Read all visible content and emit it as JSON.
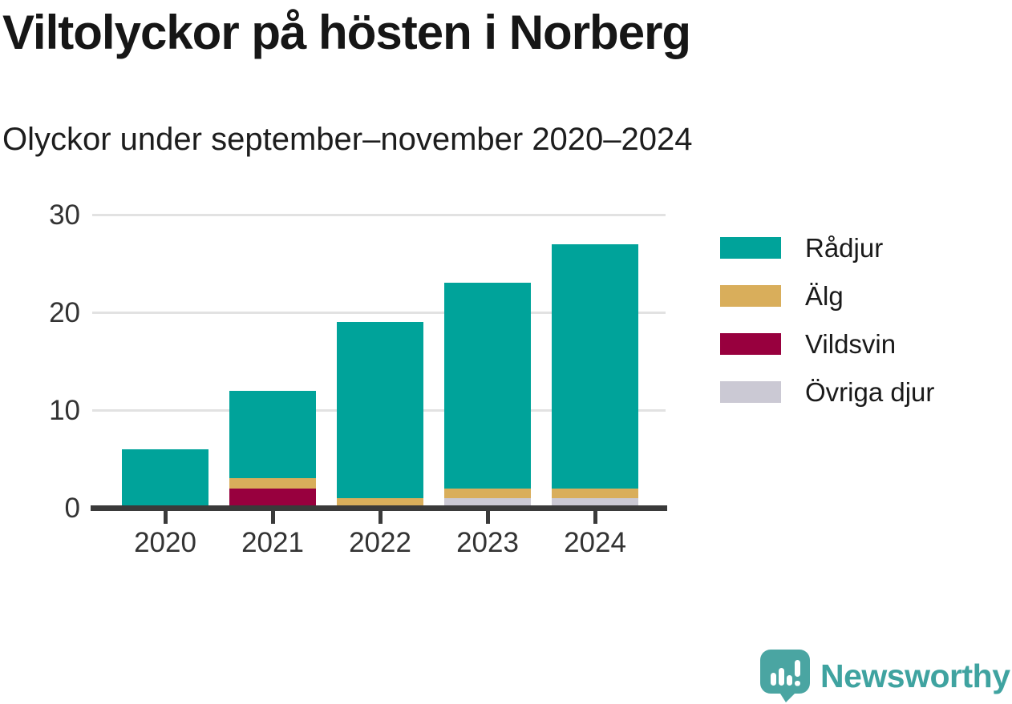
{
  "header": {
    "title": "Viltolyckor på hösten i Norberg",
    "subtitle": "Olyckor under september–november 2020–2024"
  },
  "chart_data": {
    "type": "bar",
    "stacked": true,
    "title": "Viltolyckor på hösten i Norberg",
    "subtitle": "Olyckor under september–november 2020–2024",
    "categories": [
      "2020",
      "2021",
      "2022",
      "2023",
      "2024"
    ],
    "series": [
      {
        "name": "Rådjur",
        "color": "#00a39a",
        "values": [
          6,
          9,
          18,
          21,
          25
        ]
      },
      {
        "name": "Älg",
        "color": "#d9ae5b",
        "values": [
          0,
          1,
          1,
          1,
          1
        ]
      },
      {
        "name": "Vildsvin",
        "color": "#98003e",
        "values": [
          0,
          2,
          0,
          0,
          0
        ]
      },
      {
        "name": "Övriga djur",
        "color": "#cbc9d4",
        "values": [
          0,
          0,
          0,
          1,
          1
        ]
      }
    ],
    "stack_order_bottom_to_top": [
      "Övriga djur",
      "Vildsvin",
      "Älg",
      "Rådjur"
    ],
    "totals": [
      6,
      12,
      19,
      23,
      27
    ],
    "xlabel": "",
    "ylabel": "",
    "ylim": [
      0,
      30
    ],
    "yticks": [
      0,
      10,
      20,
      30
    ],
    "grid": "horizontal",
    "legend_position": "right"
  },
  "style": {
    "axis_color": "#3a3a3a",
    "gridline_color": "#e2e2e2",
    "tick_label_color": "#333333"
  },
  "footer": {
    "brand": "Newsworthy",
    "brand_color": "#3fa3a0",
    "icon_color": "#4aa5a2",
    "icon": "newsworthy-logo-icon"
  }
}
